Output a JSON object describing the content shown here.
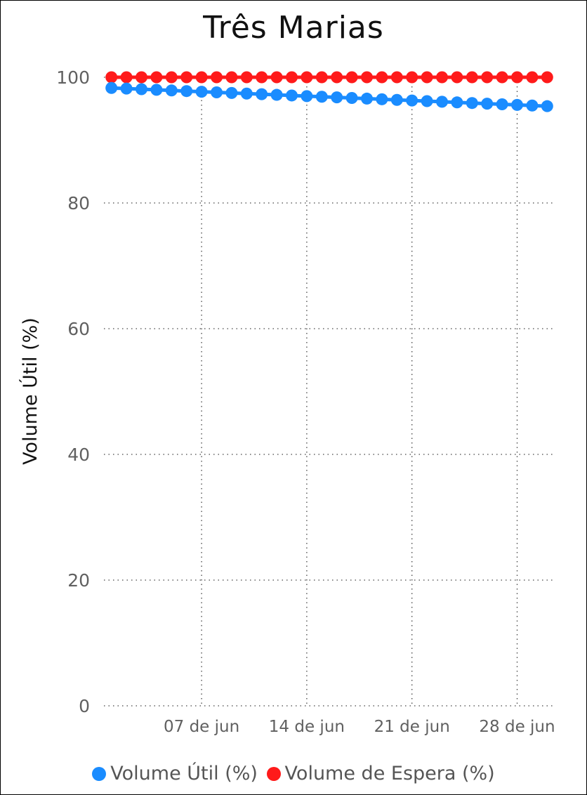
{
  "chart_data": {
    "type": "line",
    "title": "Três Marias",
    "ylabel": "Volume Útil (%)",
    "xlabel": "",
    "ylim": [
      0,
      100
    ],
    "yticks": [
      "0",
      "20",
      "40",
      "60",
      "80",
      "100"
    ],
    "grid": true,
    "x_tick_labels": [
      {
        "day": 7,
        "label": "07 de jun"
      },
      {
        "day": 14,
        "label": "14 de jun"
      },
      {
        "day": 21,
        "label": "21 de jun"
      },
      {
        "day": 28,
        "label": "28 de jun"
      }
    ],
    "x_range_days": [
      0.5,
      30.5
    ],
    "x": [
      1,
      2,
      3,
      4,
      5,
      6,
      7,
      8,
      9,
      10,
      11,
      12,
      13,
      14,
      15,
      16,
      17,
      18,
      19,
      20,
      21,
      22,
      23,
      24,
      25,
      26,
      27,
      28,
      29,
      30
    ],
    "series": [
      {
        "name": "Volume Útil (%)",
        "color": "#1a8cff",
        "values": [
          98.3,
          98.2,
          98.1,
          98.0,
          97.9,
          97.8,
          97.7,
          97.6,
          97.5,
          97.4,
          97.3,
          97.2,
          97.1,
          97.0,
          96.9,
          96.8,
          96.7,
          96.6,
          96.5,
          96.4,
          96.3,
          96.2,
          96.1,
          96.0,
          95.9,
          95.8,
          95.7,
          95.6,
          95.5,
          95.4
        ]
      },
      {
        "name": "Volume de Espera (%)",
        "color": "#ff1a1a",
        "values": [
          100,
          100,
          100,
          100,
          100,
          100,
          100,
          100,
          100,
          100,
          100,
          100,
          100,
          100,
          100,
          100,
          100,
          100,
          100,
          100,
          100,
          100,
          100,
          100,
          100,
          100,
          100,
          100,
          100,
          100
        ]
      }
    ],
    "legend": "bottom"
  }
}
